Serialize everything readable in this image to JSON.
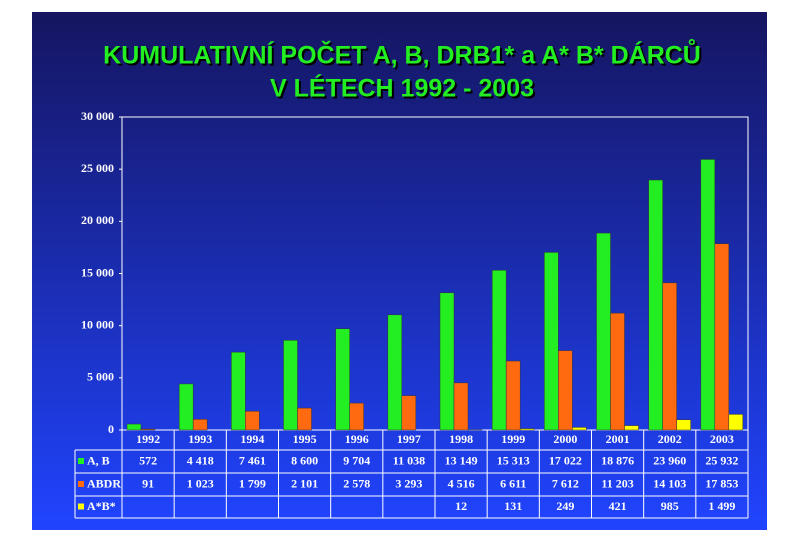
{
  "chart_data": {
    "type": "bar",
    "title": "KUMULATIVNÍ  POČET  A, B, DRB1* a  A* B* DÁRCŮ",
    "subtitle": "V  LÉTECH  1992 - 2003",
    "categories": [
      "1992",
      "1993",
      "1994",
      "1995",
      "1996",
      "1997",
      "1998",
      "1999",
      "2000",
      "2001",
      "2002",
      "2003"
    ],
    "series": [
      {
        "name": "A, B",
        "color": "#22ee22",
        "values": [
          572,
          4418,
          7461,
          8600,
          9704,
          11038,
          13149,
          15313,
          17022,
          18876,
          23960,
          25932
        ],
        "value_labels": [
          "572",
          "4 418",
          "7 461",
          "8 600",
          "9 704",
          "11 038",
          "13 149",
          "15 313",
          "17 022",
          "18 876",
          "23 960",
          "25 932"
        ]
      },
      {
        "name": "ABDR",
        "color": "#ff6a10",
        "values": [
          91,
          1023,
          1799,
          2101,
          2578,
          3293,
          4516,
          6611,
          7612,
          11203,
          14103,
          17853
        ],
        "value_labels": [
          "91",
          "1 023",
          "1 799",
          "2 101",
          "2 578",
          "3 293",
          "4 516",
          "6 611",
          "7 612",
          "11 203",
          "14 103",
          "17 853"
        ]
      },
      {
        "name": "A*B*",
        "color": "#ffff00",
        "values": [
          null,
          null,
          null,
          null,
          null,
          null,
          12,
          131,
          249,
          421,
          985,
          1499
        ],
        "value_labels": [
          null,
          null,
          null,
          null,
          null,
          null,
          "12",
          "131",
          "249",
          "421",
          "985",
          "1 499"
        ]
      }
    ],
    "ylim": [
      0,
      30000
    ],
    "yticks": [
      0,
      {
        "value": 5000,
        "label": "5 000"
      },
      {
        "value": 10000,
        "label": "10 000"
      },
      {
        "value": 15000,
        "label": "15 000"
      },
      {
        "value": 20000,
        "label": "20 000"
      },
      {
        "value": 25000,
        "label": "25 000"
      },
      {
        "value": 30000,
        "label": "30 000"
      }
    ]
  }
}
